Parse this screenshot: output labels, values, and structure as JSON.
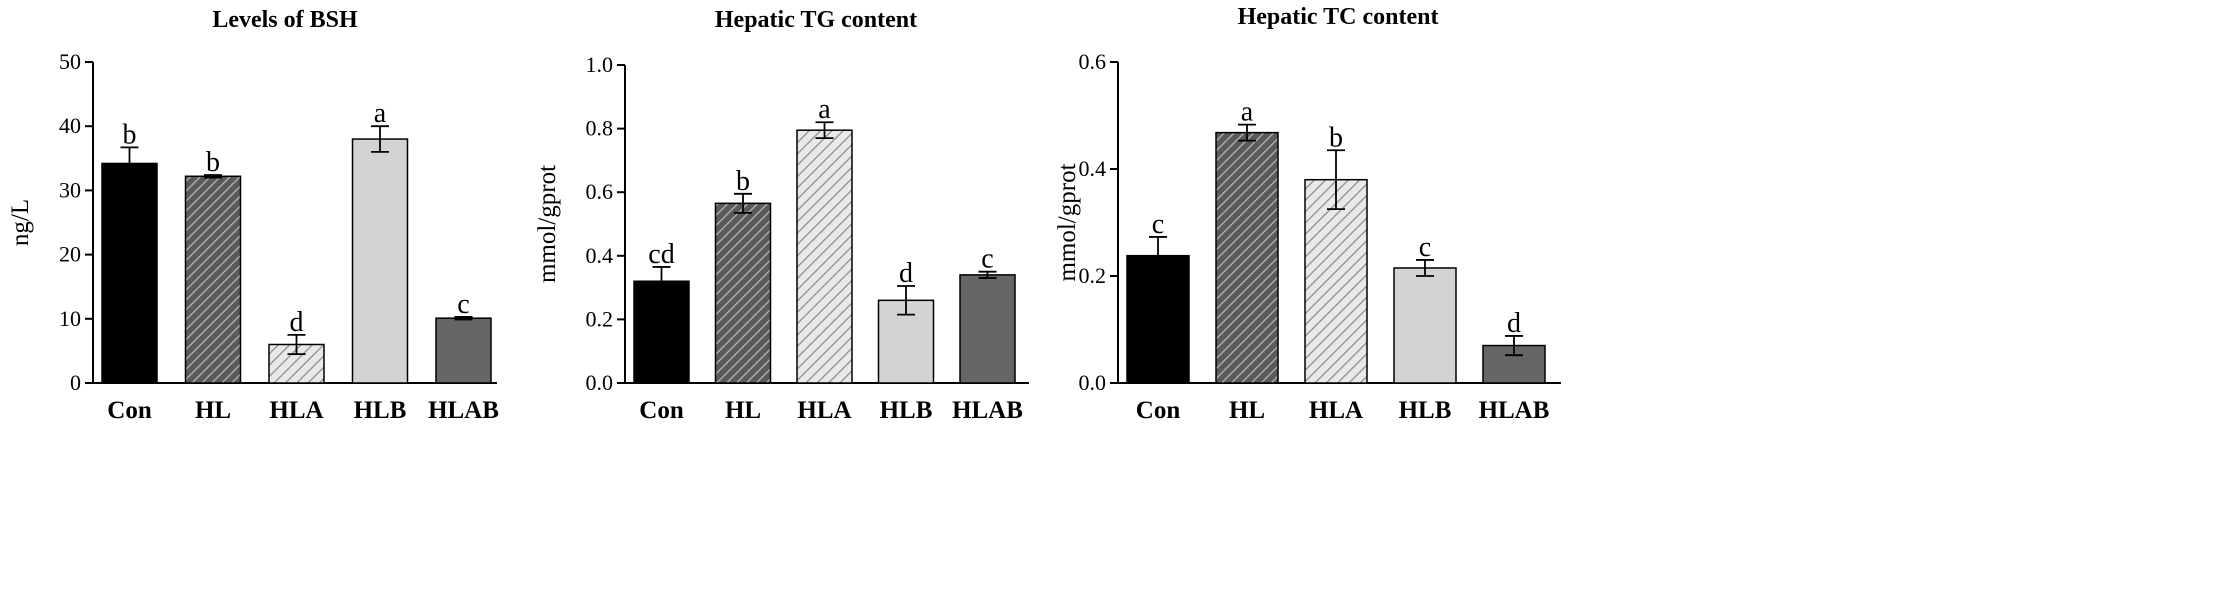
{
  "chart_data": [
    {
      "type": "bar",
      "title": "Levels of BSH",
      "xlabel": "",
      "ylabel": "ng/L",
      "ylim": [
        0,
        50
      ],
      "yticks": [
        0,
        10,
        20,
        30,
        40,
        50
      ],
      "grid": false,
      "categories": [
        "Con",
        "HL",
        "HLA",
        "HLB",
        "HLAB"
      ],
      "values": [
        34.2,
        32.2,
        6.0,
        38.0,
        10.1
      ],
      "errors": [
        2.5,
        0.2,
        1.5,
        2.0,
        0.2
      ],
      "significance": [
        "b",
        "b",
        "d",
        "a",
        "c"
      ],
      "fills": [
        "solid-black",
        "hatch-dark",
        "hatch-light",
        "solid-light-gray",
        "solid-dark-gray"
      ]
    },
    {
      "type": "bar",
      "title": "Hepatic TG content",
      "xlabel": "",
      "ylabel": "mmol/gprot",
      "ylim": [
        0,
        1.0
      ],
      "yticks": [
        "0.0",
        "0.2",
        "0.4",
        "0.6",
        "0.8",
        "1.0"
      ],
      "grid": false,
      "categories": [
        "Con",
        "HL",
        "HLA",
        "HLB",
        "HLAB"
      ],
      "values": [
        0.32,
        0.565,
        0.795,
        0.26,
        0.34
      ],
      "errors": [
        0.045,
        0.03,
        0.025,
        0.045,
        0.01
      ],
      "significance": [
        "cd",
        "b",
        "a",
        "d",
        "c"
      ],
      "fills": [
        "solid-black",
        "hatch-dark",
        "hatch-light",
        "solid-light-gray",
        "solid-dark-gray"
      ]
    },
    {
      "type": "bar",
      "title": "Hepatic TC content",
      "xlabel": "",
      "ylabel": "mmol/gprot",
      "ylim": [
        0,
        0.6
      ],
      "yticks": [
        "0.0",
        "0.2",
        "0.4",
        "0.6"
      ],
      "grid": false,
      "categories": [
        "Con",
        "HL",
        "HLA",
        "HLB",
        "HLAB"
      ],
      "values": [
        0.238,
        0.468,
        0.38,
        0.215,
        0.07
      ],
      "errors": [
        0.035,
        0.015,
        0.055,
        0.015,
        0.018
      ],
      "significance": [
        "c",
        "a",
        "b",
        "c",
        "d"
      ],
      "fills": [
        "solid-black",
        "hatch-dark",
        "hatch-light",
        "solid-light-gray",
        "solid-dark-gray"
      ]
    }
  ],
  "colors": {
    "solid-black": "#000000",
    "hatch-dark-bg": "#5a5a5a",
    "hatch-dark-line": "#b8b8b8",
    "hatch-light-bg": "#e9e9e9",
    "hatch-light-line": "#8c8c8c",
    "solid-light-gray": "#d3d3d3",
    "solid-dark-gray": "#666666",
    "axis": "#000000"
  }
}
